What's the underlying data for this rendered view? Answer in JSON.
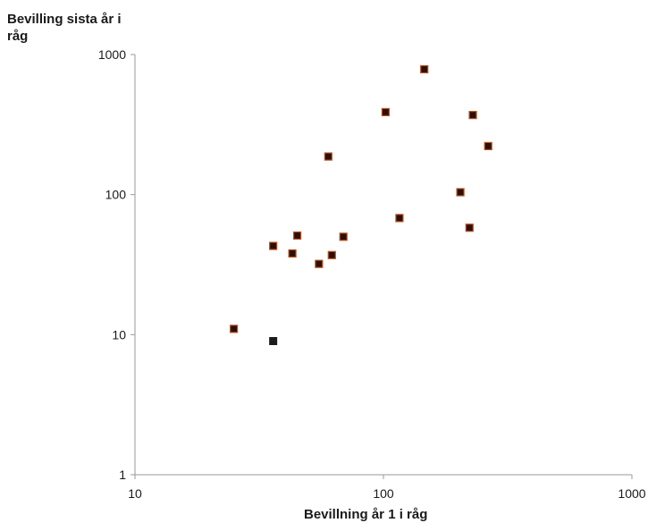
{
  "chart_data": {
    "type": "scatter",
    "title": "",
    "ylabel": "Bevilling sista år i råg",
    "xlabel": "Bevillning år 1 i råg",
    "x_scale": "log",
    "y_scale": "log",
    "xlim": [
      10,
      1000
    ],
    "ylim": [
      1,
      1000
    ],
    "x_ticks": [
      "10",
      "100",
      "1000"
    ],
    "y_ticks": [
      "1",
      "10",
      "100",
      "1000"
    ],
    "grid": false,
    "legend": "none",
    "colors": {
      "marker_fill": "#2b0f08",
      "marker_edge": "#b8521e",
      "marker_plain": "#1c1c1c",
      "axis": "#9a9a9a"
    },
    "points": [
      {
        "x": 25,
        "y": 11,
        "edged": true
      },
      {
        "x": 36,
        "y": 9,
        "edged": false
      },
      {
        "x": 36,
        "y": 43,
        "edged": true
      },
      {
        "x": 43,
        "y": 38,
        "edged": true
      },
      {
        "x": 45,
        "y": 51,
        "edged": true
      },
      {
        "x": 55,
        "y": 32,
        "edged": true
      },
      {
        "x": 60,
        "y": 187,
        "edged": true
      },
      {
        "x": 62,
        "y": 37,
        "edged": true
      },
      {
        "x": 69,
        "y": 50,
        "edged": true
      },
      {
        "x": 102,
        "y": 388,
        "edged": true
      },
      {
        "x": 116,
        "y": 68,
        "edged": true
      },
      {
        "x": 146,
        "y": 785,
        "edged": true
      },
      {
        "x": 204,
        "y": 104,
        "edged": true
      },
      {
        "x": 222,
        "y": 58,
        "edged": true
      },
      {
        "x": 229,
        "y": 370,
        "edged": true
      },
      {
        "x": 264,
        "y": 222,
        "edged": true
      }
    ]
  }
}
